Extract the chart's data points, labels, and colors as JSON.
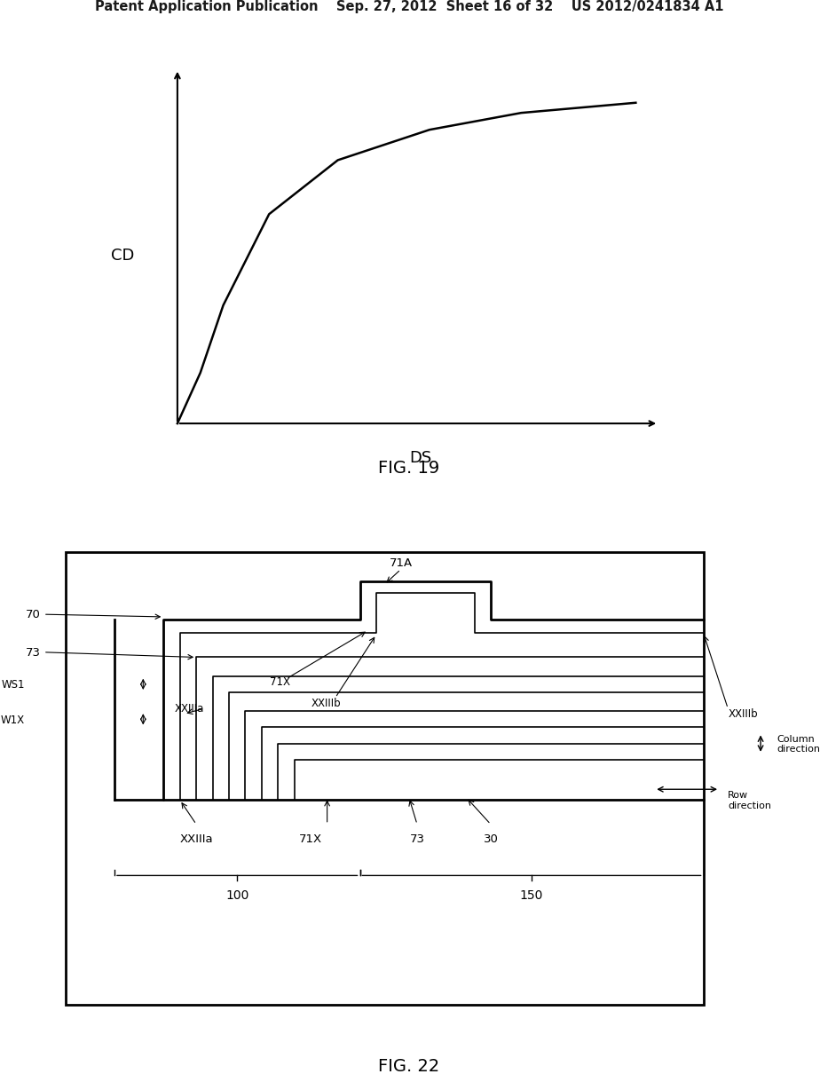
{
  "bg_color": "#ffffff",
  "header_text": "Patent Application Publication    Sep. 27, 2012  Sheet 16 of 32    US 2012/0241834 A1",
  "fig19_label": "FIG. 19",
  "fig22_label": "FIG. 22",
  "curve_x": [
    0.0,
    0.05,
    0.1,
    0.2,
    0.35,
    0.55,
    0.75,
    1.0
  ],
  "curve_y": [
    0.0,
    0.15,
    0.35,
    0.62,
    0.78,
    0.87,
    0.92,
    0.95
  ],
  "cd_label": "CD",
  "ds_label": "DS"
}
